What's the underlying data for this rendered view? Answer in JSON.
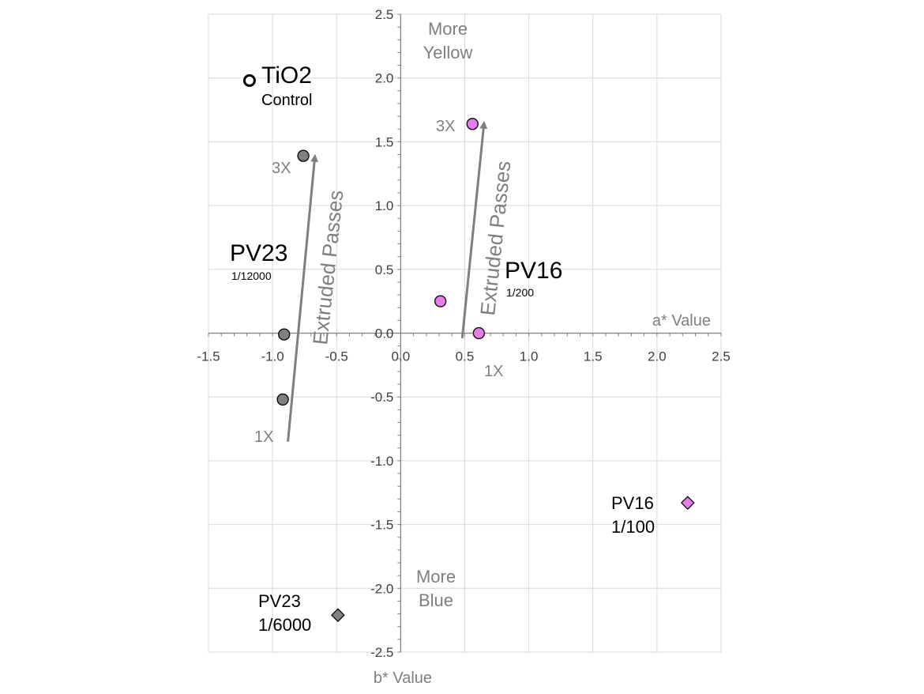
{
  "chart_data": {
    "type": "scatter",
    "xlabel": "a* Value",
    "ylabel": "b* Value",
    "xlim": [
      -1.5,
      2.5
    ],
    "ylim": [
      -2.5,
      2.5
    ],
    "x_ticks": [
      "-1.5",
      "-1.0",
      "-0.5",
      "0.0",
      "0.5",
      "1.0",
      "1.5",
      "2.0",
      "2.5"
    ],
    "y_ticks": [
      "2.5",
      "2.0",
      "1.5",
      "1.0",
      "0.5",
      "0.0",
      "-0.5",
      "-1.0",
      "-1.5",
      "-2.0",
      "-2.5"
    ],
    "grid": true,
    "series": [
      {
        "color": "#808080",
        "marker": "circle",
        "points": [
          {
            "x": -0.92,
            "y": -0.52
          },
          {
            "x": -0.91,
            "y": -0.01
          },
          {
            "x": -0.76,
            "y": 1.39
          }
        ]
      },
      {
        "color": "#e37fe8",
        "marker": "circle",
        "points": [
          {
            "x": 0.31,
            "y": 0.25
          },
          {
            "x": 0.61,
            "y": 0.0
          },
          {
            "x": 0.56,
            "y": 1.64
          }
        ]
      },
      {
        "color": "#ffffff",
        "marker": "open-circle",
        "points": [
          {
            "x": -1.18,
            "y": 1.98
          }
        ]
      },
      {
        "color": "#808080",
        "marker": "diamond",
        "points": [
          {
            "x": -0.49,
            "y": -2.21
          }
        ]
      },
      {
        "color": "#e37fe8",
        "marker": "diamond",
        "points": [
          {
            "x": 2.24,
            "y": -1.33
          }
        ]
      }
    ],
    "arrows": [
      {
        "from": [
          -0.88,
          -0.85
        ],
        "to": [
          -0.67,
          1.38
        ]
      },
      {
        "from": [
          0.48,
          -0.04
        ],
        "to": [
          0.65,
          1.64
        ]
      }
    ],
    "annotations": {
      "more_yellow": [
        "More",
        "Yellow"
      ],
      "more_blue": [
        "More",
        "Blue"
      ],
      "extruded_passes": "Extruded Passes",
      "pv23_3x": "3X",
      "pv23_1x": "1X",
      "pv16_3x": "3X",
      "pv16_1x": "1X",
      "pv23_name": "PV23",
      "pv23_ratio": "1/12000",
      "pv16_name": "PV16",
      "pv16_ratio": "1/200",
      "tio2_name": "TiO2",
      "tio2_sub": "Control",
      "pv23_diamond": [
        "PV23",
        "1/6000"
      ],
      "pv16_diamond": [
        "PV16",
        "1/100"
      ]
    }
  }
}
